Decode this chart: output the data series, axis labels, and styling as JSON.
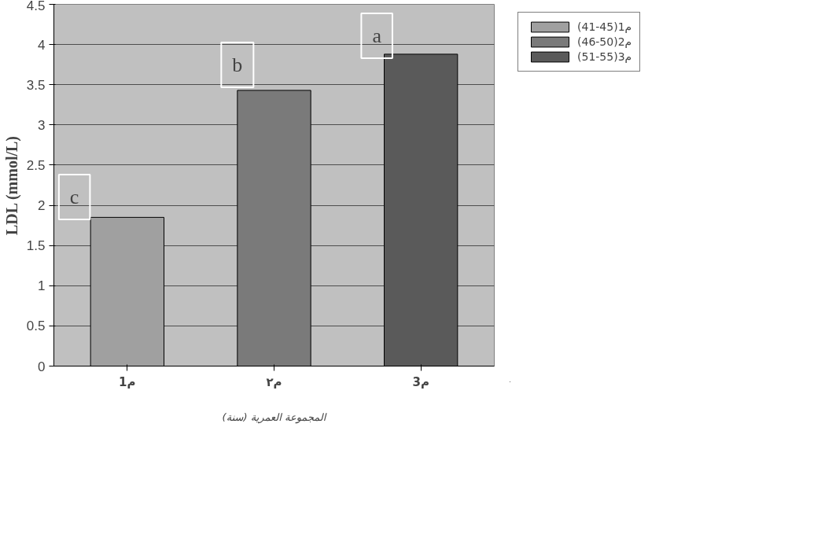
{
  "chart_data": {
    "type": "bar",
    "xlabel": "المجموعة العمرية (سنة)",
    "ylabel": "LDL (mmol/L)",
    "categories": [
      "م1",
      "م٢",
      "م3"
    ],
    "series": [
      {
        "name": "م1(45-41)",
        "color": "#a0a0a0",
        "values": [
          1.85,
          null,
          null
        ]
      },
      {
        "name": "م2(50-46)",
        "color": "#7a7a7a",
        "values": [
          null,
          3.43,
          null
        ]
      },
      {
        "name": "م3(55-51)",
        "color": "#5a5a5a",
        "values": [
          null,
          null,
          3.88
        ]
      }
    ],
    "ylim": [
      0,
      4.5
    ],
    "yticks": [
      0,
      0.5,
      1,
      1.5,
      2,
      2.5,
      3,
      3.5,
      4,
      4.5
    ],
    "grid": "y",
    "legend": "right",
    "annotations": [
      "c",
      "b",
      "a"
    ]
  }
}
